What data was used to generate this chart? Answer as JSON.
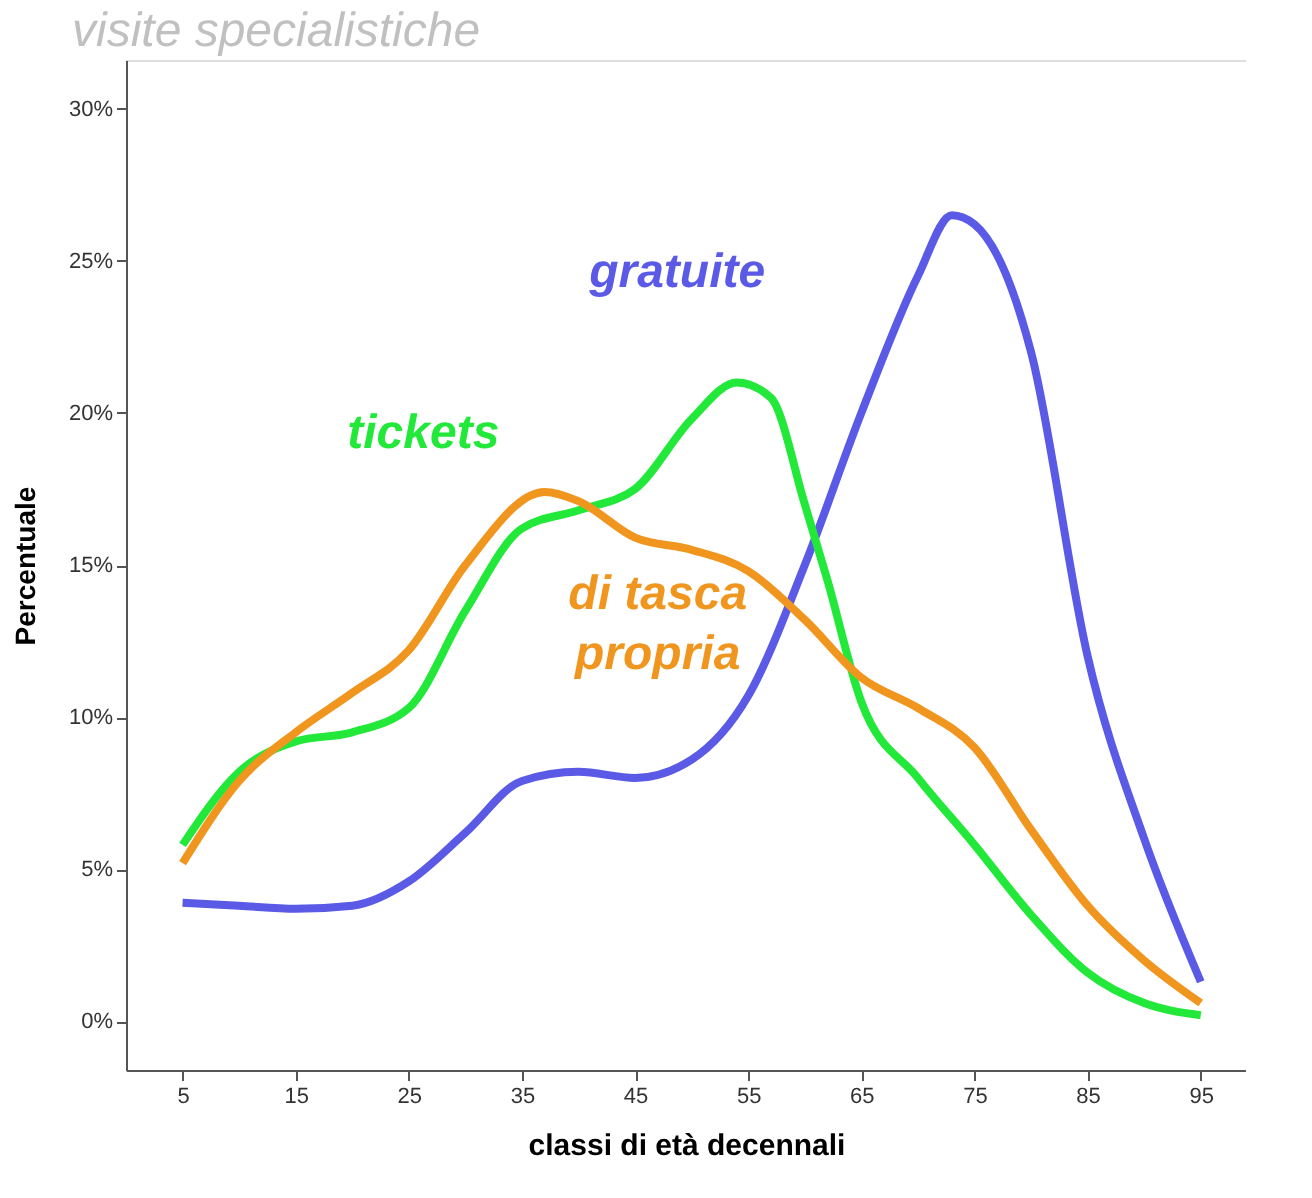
{
  "chart_data": {
    "type": "line",
    "title": "visite specialistiche",
    "xlabel": "classi di età decennali",
    "ylabel": "Percentuale",
    "xlim": [
      0,
      99
    ],
    "xticks": [
      5,
      15,
      25,
      35,
      45,
      55,
      65,
      75,
      85,
      95
    ],
    "ylim": [
      -1.6,
      31.6
    ],
    "yticks": [
      {
        "value": 0,
        "label": "0%"
      },
      {
        "value": 5,
        "label": "5%"
      },
      {
        "value": 10,
        "label": "10%"
      },
      {
        "value": 15,
        "label": "15%"
      },
      {
        "value": 20,
        "label": "20%"
      },
      {
        "value": 25,
        "label": "25%"
      },
      {
        "value": 30,
        "label": "30%"
      }
    ],
    "grid": false,
    "line_style": "solid",
    "marker": "none",
    "series": [
      {
        "name": "gratuite",
        "color": "#5a5ae6",
        "x": [
          5,
          10,
          15,
          20,
          25,
          30,
          35,
          40,
          45,
          50,
          55,
          60,
          65,
          70,
          73,
          75,
          80,
          85,
          90,
          95
        ],
        "values": [
          3.9,
          3.8,
          3.7,
          3.8,
          4.6,
          6.2,
          7.9,
          8.2,
          8.0,
          8.6,
          10.7,
          15,
          20,
          24.5,
          26.5,
          26.2,
          22,
          12,
          6,
          1.3
        ]
      },
      {
        "name": "tickets",
        "color": "#22e83a",
        "x": [
          5,
          10,
          15,
          20,
          25,
          30,
          35,
          40,
          45,
          50,
          54,
          57,
          60,
          62,
          65,
          70,
          75,
          80,
          85,
          90,
          95
        ],
        "values": [
          5.8,
          8.2,
          9.2,
          9.5,
          10.3,
          13.5,
          16.2,
          16.8,
          17.5,
          19.8,
          21,
          20.5,
          17,
          14.5,
          10.5,
          8,
          5.8,
          3.5,
          1.6,
          0.6,
          0.2
        ]
      },
      {
        "name": "di tasca propria",
        "color": "#f0961e",
        "x": [
          5,
          10,
          15,
          20,
          25,
          30,
          37,
          40,
          45,
          50,
          55,
          60,
          65,
          70,
          75,
          80,
          85,
          90,
          95
        ],
        "values": [
          5.2,
          7.9,
          9.5,
          10.8,
          12.2,
          15,
          17.4,
          17.1,
          15.9,
          15.5,
          14.8,
          13.2,
          11.3,
          10.3,
          9,
          6.3,
          3.8,
          2,
          0.6
        ]
      }
    ]
  }
}
